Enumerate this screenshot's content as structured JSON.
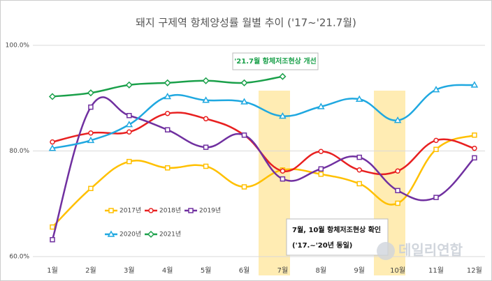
{
  "chart_data": {
    "type": "line",
    "title": "돼지 구제역 항체양성률 월별 추이 ('17~'21.7월)",
    "categories": [
      "1월",
      "2월",
      "3월",
      "4월",
      "5월",
      "6월",
      "7월",
      "8월",
      "9월",
      "10월",
      "11월",
      "12월"
    ],
    "series": [
      {
        "name": "2017년",
        "color": "#ffc000",
        "marker": "square",
        "values": [
          65.6,
          72.9,
          78.0,
          76.8,
          77.1,
          73.2,
          76.4,
          75.6,
          73.8,
          70.1,
          80.3,
          83.0
        ]
      },
      {
        "name": "2018년",
        "color": "#e82020",
        "marker": "circle",
        "values": [
          81.7,
          83.4,
          83.6,
          87.1,
          86.1,
          83.0,
          76.2,
          79.9,
          76.4,
          76.2,
          82.0,
          80.5
        ]
      },
      {
        "name": "2019년",
        "color": "#7030a0",
        "marker": "square",
        "values": [
          63.2,
          88.3,
          86.7,
          84.0,
          80.7,
          83.0,
          74.7,
          76.6,
          78.8,
          72.5,
          71.2,
          78.7
        ]
      },
      {
        "name": "2020년",
        "color": "#1fa8e0",
        "marker": "triangle",
        "values": [
          80.5,
          82.0,
          85.0,
          90.3,
          89.6,
          89.3,
          86.6,
          88.4,
          89.8,
          85.8,
          91.6,
          92.5
        ]
      },
      {
        "name": "2021년",
        "color": "#1aa04a",
        "marker": "diamond",
        "values": [
          90.3,
          91.0,
          92.5,
          92.9,
          93.3,
          92.9,
          94.1,
          null,
          null,
          null,
          null,
          null
        ]
      }
    ],
    "ylim": [
      60,
      100
    ],
    "yticks": [
      {
        "value": 60,
        "label": "60.0%"
      },
      {
        "value": 80,
        "label": "80.0%"
      },
      {
        "value": 100,
        "label": "100.0%"
      }
    ],
    "grid": true,
    "annotations": [
      "'21.7월 항체저조현상 개선",
      "7월, 10월 항체저조현상 확인",
      "('17.~'20년 동일)"
    ],
    "watermark": "데일리연합"
  }
}
